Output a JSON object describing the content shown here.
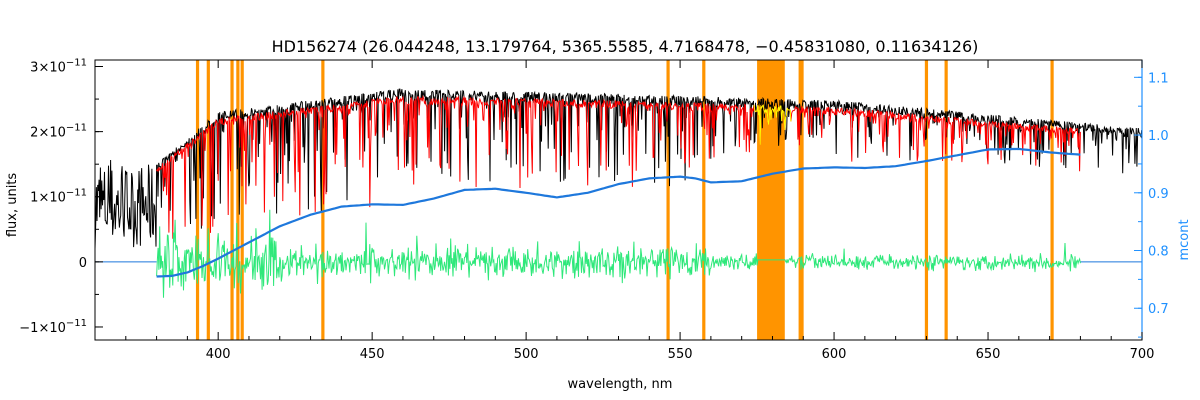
{
  "chart_data": {
    "type": "line",
    "title": "HD156274    (26.044248, 13.179764, 5365.5585, 4.7168478, −0.45831080, 0.11634126)",
    "xlabel": "wavelength, nm",
    "ylabel": "flux, units",
    "y2label": "mcont",
    "xlim": [
      360,
      700
    ],
    "ylim": [
      -1.2e-11,
      3.1e-11
    ],
    "y2lim": [
      0.645,
      1.13
    ],
    "x_ticks": [
      400,
      450,
      500,
      550,
      600,
      650,
      700
    ],
    "x_tick_labels": [
      "400",
      "450",
      "500",
      "550",
      "600",
      "650",
      "700"
    ],
    "y_ticks": [
      -1e-11,
      0,
      1e-11,
      2e-11,
      3e-11
    ],
    "y_tick_mantissa": [
      "−1×10",
      "0",
      "1×10",
      "2×10",
      "3×10"
    ],
    "y_tick_exponent": [
      "−11",
      "",
      "−11",
      "−11",
      "−11"
    ],
    "y2_ticks": [
      0.7,
      0.8,
      0.9,
      1.0,
      1.1
    ],
    "y2_tick_labels": [
      "0.7",
      "0.8",
      "0.9",
      "1.0",
      "1.1"
    ],
    "masked_lines_nm": [
      393.3,
      396.8,
      404.5,
      406.4,
      407.8,
      434.0,
      546.1,
      557.7,
      589.0,
      589.6,
      630.0,
      636.4,
      670.8
    ],
    "masked_band_nm": [
      575.0,
      584.0
    ],
    "mcont": {
      "x": [
        380,
        385,
        390,
        395,
        400,
        405,
        410,
        420,
        430,
        440,
        450,
        460,
        470,
        480,
        490,
        500,
        510,
        520,
        530,
        540,
        550,
        555,
        560,
        570,
        580,
        590,
        600,
        610,
        620,
        630,
        640,
        650,
        660,
        670,
        680
      ],
      "y": [
        0.755,
        0.756,
        0.762,
        0.773,
        0.786,
        0.8,
        0.814,
        0.842,
        0.862,
        0.876,
        0.88,
        0.879,
        0.89,
        0.905,
        0.907,
        0.9,
        0.892,
        0.9,
        0.915,
        0.925,
        0.928,
        0.925,
        0.918,
        0.92,
        0.933,
        0.942,
        0.944,
        0.943,
        0.946,
        0.955,
        0.965,
        0.975,
        0.976,
        0.97,
        0.966
      ]
    },
    "series": [
      {
        "name": "observed"
      },
      {
        "name": "model"
      },
      {
        "name": "excluded model"
      },
      {
        "name": "residuals"
      },
      {
        "name": "mcont"
      }
    ],
    "colors": {
      "observed": "#000000",
      "model": "#ff0000",
      "excluded": "#ffff00",
      "residual": "#2ee87a",
      "mcont": "#1e78dc",
      "mask": "#ff9400",
      "right_axis": "#1e90ff"
    }
  }
}
